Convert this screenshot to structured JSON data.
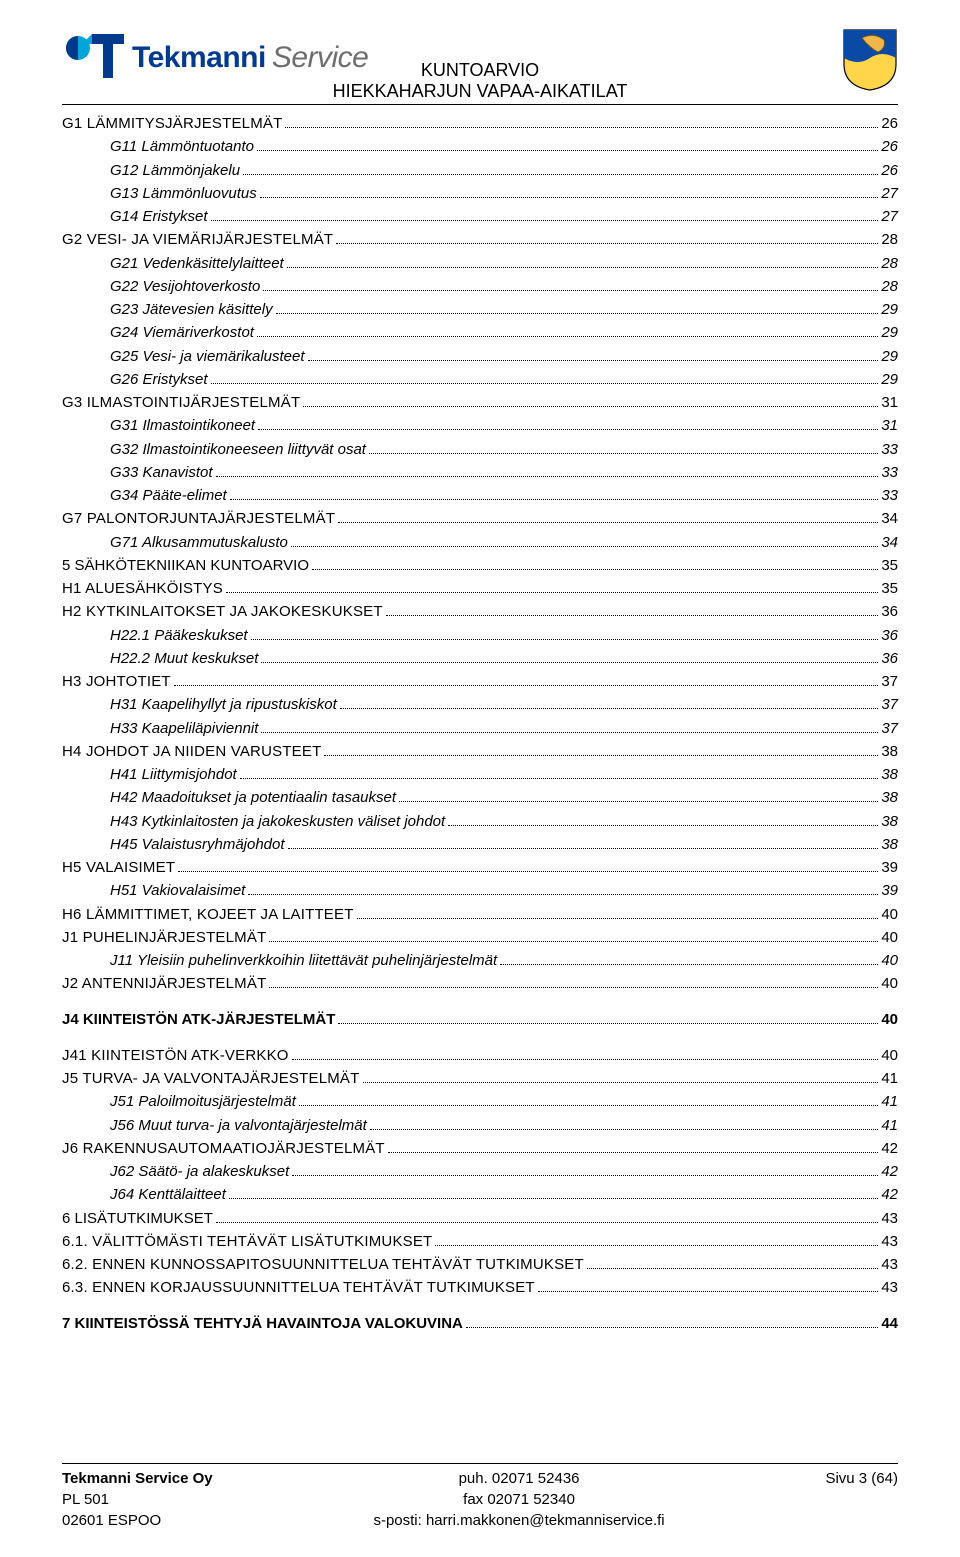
{
  "brand": {
    "name": "Tekmanni",
    "suffix": "Service"
  },
  "header": {
    "line1": "KUNTOARVIO",
    "line2": "HIEKKAHARJUN VAPAA-AIKATILAT"
  },
  "colors": {
    "brand_blue": "#003a8c",
    "brand_cyan": "#00a6d6",
    "shield_blue": "#0a4aa6",
    "shield_yellow": "#ffd54a",
    "text": "#000000"
  },
  "toc": [
    {
      "level": "l1",
      "label_sc": "G1 LÄMMITYSJÄRJESTELMÄT",
      "page": "26"
    },
    {
      "level": "l2",
      "label": "G11 Lämmöntuotanto",
      "page": "26"
    },
    {
      "level": "l2",
      "label": "G12 Lämmönjakelu",
      "page": "26"
    },
    {
      "level": "l2",
      "label": "G13 Lämmönluovutus",
      "page": "27"
    },
    {
      "level": "l2",
      "label": "G14 Eristykset",
      "page": "27"
    },
    {
      "level": "l1",
      "label_sc": "G2 VESI- JA VIEMÄRIJÄRJESTELMÄT",
      "page": "28"
    },
    {
      "level": "l2",
      "label": "G21 Vedenkäsittelylaitteet",
      "page": "28"
    },
    {
      "level": "l2",
      "label": "G22 Vesijohtoverkosto",
      "page": "28"
    },
    {
      "level": "l2",
      "label": "G23 Jätevesien käsittely",
      "page": "29"
    },
    {
      "level": "l2",
      "label": "G24 Viemäriverkostot",
      "page": "29"
    },
    {
      "level": "l2",
      "label": "G25 Vesi- ja viemärikalusteet",
      "page": "29"
    },
    {
      "level": "l2",
      "label": "G26 Eristykset",
      "page": "29"
    },
    {
      "level": "l1",
      "label_sc": "G3 ILMASTOINTIJÄRJESTELMÄT",
      "page": "31"
    },
    {
      "level": "l2",
      "label": "G31 Ilmastointikoneet",
      "page": "31"
    },
    {
      "level": "l2",
      "label": "G32 Ilmastointikoneeseen liittyvät osat",
      "page": "33"
    },
    {
      "level": "l2",
      "label": "G33 Kanavistot",
      "page": "33"
    },
    {
      "level": "l2",
      "label": "G34 Pääte-elimet",
      "page": "33"
    },
    {
      "level": "l1",
      "label_sc": "G7 PALONTORJUNTAJÄRJESTELMÄT",
      "page": "34"
    },
    {
      "level": "l2",
      "label": "G71 Alkusammutuskalusto",
      "page": "34"
    },
    {
      "level": "l1",
      "label_plain": "5    SÄHKÖTEKNIIKAN KUNTOARVIO",
      "page": "35"
    },
    {
      "level": "l1",
      "label_sc": "H1 ALUESÄHKÖISTYS",
      "page": "35"
    },
    {
      "level": "l1",
      "label_sc": "H2 KYTKINLAITOKSET JA JAKOKESKUKSET",
      "page": "36"
    },
    {
      "level": "l2",
      "label": "H22.1 Pääkeskukset",
      "page": "36"
    },
    {
      "level": "l2",
      "label": "H22.2 Muut keskukset",
      "page": "36"
    },
    {
      "level": "l1",
      "label_sc": "H3 JOHTOTIET",
      "page": "37"
    },
    {
      "level": "l2",
      "label": "H31 Kaapelihyllyt ja ripustuskiskot",
      "page": "37"
    },
    {
      "level": "l2",
      "label": "H33 Kaapeliläpiviennit",
      "page": "37"
    },
    {
      "level": "l1",
      "label_sc": "H4 JOHDOT JA NIIDEN VARUSTEET",
      "page": "38"
    },
    {
      "level": "l2",
      "label": "H41 Liittymisjohdot",
      "page": "38"
    },
    {
      "level": "l2",
      "label": "H42 Maadoitukset ja potentiaalin tasaukset",
      "page": "38"
    },
    {
      "level": "l2",
      "label": "H43 Kytkinlaitosten ja jakokeskusten väliset johdot",
      "page": "38"
    },
    {
      "level": "l2",
      "label": "H45 Valaistusryhmäjohdot",
      "page": "38"
    },
    {
      "level": "l1",
      "label_sc": "H5 VALAISIMET",
      "page": "39"
    },
    {
      "level": "l2",
      "label": "H51 Vakiovalaisimet",
      "page": "39"
    },
    {
      "level": "l1",
      "label_sc": "H6 LÄMMITTIMET, KOJEET JA LAITTEET",
      "page": "40"
    },
    {
      "level": "l1",
      "label_sc": "J1 PUHELINJÄRJESTELMÄT",
      "page": "40"
    },
    {
      "level": "l2",
      "label": "J11 Yleisiin puhelinverkkoihin liitettävät puhelinjärjestelmät",
      "page": "40"
    },
    {
      "level": "l1",
      "label_sc": "J2 ANTENNIJÄRJESTELMÄT",
      "page": "40"
    },
    {
      "level": "l0",
      "label_plain": "J4 KIINTEISTÖN ATK-JÄRJESTELMÄT",
      "page": "40",
      "spacer": true
    },
    {
      "level": "l1",
      "label_sc": "J41 KIINTEISTÖN ATK-VERKKO",
      "page": "40",
      "spacer": true
    },
    {
      "level": "l1",
      "label_sc": "J5 TURVA- JA VALVONTAJÄRJESTELMÄT",
      "page": "41"
    },
    {
      "level": "l2",
      "label": "J51 Paloilmoitusjärjestelmät",
      "page": "41"
    },
    {
      "level": "l2",
      "label": "J56 Muut turva- ja valvontajärjestelmät",
      "page": "41"
    },
    {
      "level": "l1",
      "label_sc": "J6 RAKENNUSAUTOMAATIOJÄRJESTELMÄT",
      "page": "42"
    },
    {
      "level": "l2",
      "label": "J62 Säätö- ja alakeskukset",
      "page": "42"
    },
    {
      "level": "l2",
      "label": "J64 Kenttälaitteet",
      "page": "42"
    },
    {
      "level": "l1",
      "label_plain": "6    LISÄTUTKIMUKSET",
      "page": "43"
    },
    {
      "level": "l1",
      "label_sc": "6.1. VÄLITTÖMÄSTI TEHTÄVÄT LISÄTUTKIMUKSET",
      "page": "43"
    },
    {
      "level": "l1",
      "label_sc": "6.2. ENNEN KUNNOSSAPITOSUUNNITTELUA TEHTÄVÄT TUTKIMUKSET",
      "page": "43"
    },
    {
      "level": "l1",
      "label_sc": "6.3. ENNEN KORJAUSSUUNNITTELUA TEHTÄVÄT TUTKIMUKSET",
      "page": "43"
    },
    {
      "level": "l0",
      "label_plain": "7    KIINTEISTÖSSÄ TEHTYJÄ HAVAINTOJA VALOKUVINA",
      "page": "44",
      "spacer": true
    }
  ],
  "footer": {
    "company": "Tekmanni Service Oy",
    "addr1": "PL 501",
    "addr2": "02601 ESPOO",
    "phone": "puh. 02071 52436",
    "fax": "fax 02071 52340",
    "email": "s-posti: harri.makkonen@tekmanniservice.fi",
    "page": "Sivu 3 (64)"
  }
}
